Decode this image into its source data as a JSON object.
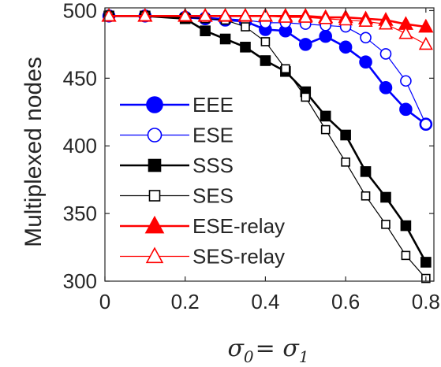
{
  "chart_data": {
    "type": "line",
    "title": "",
    "ylabel": "Multiplexed nodes",
    "xlabel": {
      "sym0": "σ",
      "sub0": "0",
      "eq": "= ",
      "sym1": "σ",
      "sub1": "1"
    },
    "xlim": [
      0,
      0.82
    ],
    "ylim": [
      300,
      502
    ],
    "xticks": [
      0,
      0.2,
      0.4,
      0.6,
      0.8
    ],
    "xtick_labels": [
      "0",
      "0.2",
      "0.4",
      "0.6",
      "0.8"
    ],
    "yticks": [
      300,
      350,
      400,
      450,
      500
    ],
    "ytick_labels": [
      "300",
      "350",
      "400",
      "450",
      "500"
    ],
    "grid": false,
    "legend_position": "bottom-left",
    "series": [
      {
        "name": "EEE",
        "color": "#0000ff",
        "marker": "circle",
        "filled": true,
        "line_width": "thick",
        "x": [
          0.01,
          0.1,
          0.2,
          0.25,
          0.3,
          0.35,
          0.4,
          0.45,
          0.5,
          0.55,
          0.6,
          0.65,
          0.7,
          0.75,
          0.8
        ],
        "y": [
          496,
          496,
          495,
          494,
          493,
          492,
          486,
          485,
          475,
          481,
          473,
          462,
          443,
          427,
          416
        ]
      },
      {
        "name": "ESE",
        "color": "#0000ff",
        "marker": "circle",
        "filled": false,
        "line_width": "thin",
        "x": [
          0.01,
          0.1,
          0.2,
          0.25,
          0.3,
          0.35,
          0.4,
          0.45,
          0.5,
          0.55,
          0.6,
          0.65,
          0.7,
          0.75,
          0.8
        ],
        "y": [
          496,
          496,
          495,
          495,
          494,
          493,
          491,
          491,
          490,
          489,
          488,
          480,
          468,
          448,
          416
        ]
      },
      {
        "name": "SSS",
        "color": "#000000",
        "marker": "square",
        "filled": true,
        "line_width": "thick",
        "x": [
          0.01,
          0.1,
          0.2,
          0.25,
          0.3,
          0.35,
          0.4,
          0.45,
          0.5,
          0.55,
          0.6,
          0.65,
          0.7,
          0.75,
          0.8
        ],
        "y": [
          496,
          496,
          494,
          485,
          479,
          473,
          463,
          455,
          440,
          422,
          408,
          381,
          362,
          341,
          314
        ]
      },
      {
        "name": "SES",
        "color": "#000000",
        "marker": "square",
        "filled": false,
        "line_width": "thin",
        "x": [
          0.01,
          0.1,
          0.2,
          0.25,
          0.3,
          0.35,
          0.4,
          0.45,
          0.5,
          0.55,
          0.6,
          0.65,
          0.7,
          0.75,
          0.8
        ],
        "y": [
          496,
          496,
          495,
          494,
          493,
          488,
          477,
          457,
          436,
          412,
          388,
          363,
          342,
          319,
          302
        ]
      },
      {
        "name": "ESE-relay",
        "color": "#ff0000",
        "marker": "triangle",
        "filled": true,
        "line_width": "thick",
        "x": [
          0.01,
          0.1,
          0.2,
          0.25,
          0.3,
          0.35,
          0.4,
          0.45,
          0.5,
          0.55,
          0.6,
          0.65,
          0.7,
          0.75,
          0.8
        ],
        "y": [
          496,
          496,
          496,
          496,
          496,
          496,
          496,
          496,
          496,
          495,
          495,
          494,
          493,
          490,
          488
        ]
      },
      {
        "name": "SES-relay",
        "color": "#ff0000",
        "marker": "triangle",
        "filled": false,
        "line_width": "thin",
        "x": [
          0.01,
          0.1,
          0.2,
          0.25,
          0.3,
          0.35,
          0.4,
          0.45,
          0.5,
          0.55,
          0.6,
          0.65,
          0.7,
          0.75,
          0.8
        ],
        "y": [
          496,
          496,
          496,
          496,
          496,
          496,
          496,
          495,
          495,
          494,
          493,
          492,
          490,
          483,
          475
        ]
      }
    ]
  }
}
